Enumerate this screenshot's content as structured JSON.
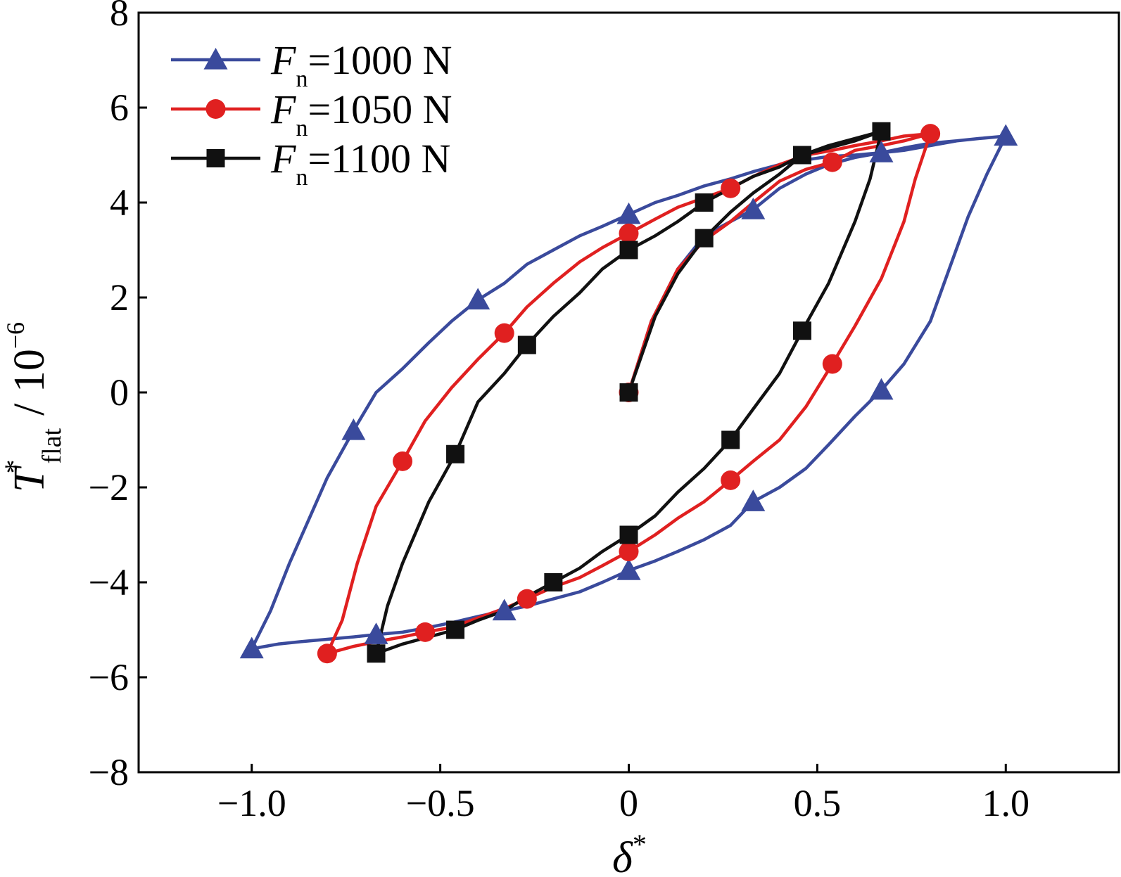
{
  "chart_data": {
    "type": "line",
    "title": "",
    "xlabel": {
      "symbol": "δ",
      "superscript": "*"
    },
    "ylabel": {
      "symbol": "T",
      "superscript": "*",
      "subscript": "flat",
      "unit": "/ 10",
      "unit_exponent": "−6"
    },
    "xlim": [
      -1.3,
      1.3
    ],
    "ylim": [
      -8,
      8
    ],
    "xticks": [
      -1.0,
      -0.5,
      0,
      0.5,
      1.0
    ],
    "xtick_labels": [
      "−1.0",
      "−0.5",
      "0",
      "0.5",
      "1.0"
    ],
    "yticks": [
      -8,
      -6,
      -4,
      -2,
      0,
      2,
      4,
      6,
      8
    ],
    "ytick_labels": [
      "−8",
      "−6",
      "−4",
      "−2",
      "0",
      "2",
      "4",
      "6",
      "8"
    ],
    "grid": false,
    "legend_position": "top-left",
    "series": [
      {
        "name": "F_n=1000 N",
        "legend": {
          "symbol": "F",
          "subscript": "n",
          "text": "=1000 N"
        },
        "color": "#3a4a9c",
        "marker": "triangle",
        "x": [
          0,
          0.06,
          0.13,
          0.2,
          0.27,
          0.33,
          0.4,
          0.47,
          0.53,
          0.6,
          0.67,
          0.73,
          0.8,
          0.87,
          0.93,
          1.0,
          0.95,
          0.9,
          0.85,
          0.8,
          0.73,
          0.67,
          0.6,
          0.53,
          0.47,
          0.4,
          0.33,
          0.27,
          0.2,
          0.13,
          0.07,
          0,
          -0.07,
          -0.13,
          -0.2,
          -0.27,
          -0.33,
          -0.4,
          -0.47,
          -0.53,
          -0.6,
          -0.67,
          -0.73,
          -0.8,
          -0.87,
          -0.93,
          -1.0,
          -0.95,
          -0.9,
          -0.85,
          -0.8,
          -0.73,
          -0.67,
          -0.6,
          -0.53,
          -0.47,
          -0.4,
          -0.33,
          -0.27,
          -0.2,
          -0.13,
          -0.07,
          0,
          0.07,
          0.13,
          0.2,
          0.27,
          0.33,
          0.4,
          0.47,
          0.53,
          0.6,
          0.67,
          0.73,
          0.8,
          0.87,
          0.93,
          1.0
        ],
        "y": [
          0,
          1.5,
          2.6,
          3.3,
          3.6,
          3.85,
          4.3,
          4.6,
          4.8,
          4.95,
          5.05,
          5.15,
          5.25,
          5.3,
          5.35,
          5.4,
          4.6,
          3.7,
          2.6,
          1.5,
          0.6,
          0.05,
          -0.5,
          -1.1,
          -1.6,
          -2.0,
          -2.3,
          -2.8,
          -3.1,
          -3.35,
          -3.55,
          -3.75,
          -4.0,
          -4.2,
          -4.35,
          -4.5,
          -4.6,
          -4.72,
          -4.85,
          -4.95,
          -5.05,
          -5.1,
          -5.15,
          -5.2,
          -5.25,
          -5.3,
          -5.4,
          -4.6,
          -3.6,
          -2.7,
          -1.8,
          -0.8,
          0.0,
          0.5,
          1.05,
          1.5,
          1.95,
          2.3,
          2.7,
          3.0,
          3.3,
          3.5,
          3.75,
          4.0,
          4.15,
          4.35,
          4.5,
          4.65,
          4.8,
          4.9,
          4.97,
          5.0,
          5.05,
          5.1,
          5.2,
          5.3,
          5.35,
          5.4
        ],
        "marker_x": [
          1.0,
          0.67,
          0.33,
          0,
          -0.4,
          -0.73,
          -1.0,
          -0.67,
          -0.33,
          0,
          0.33,
          0.67
        ],
        "marker_y": [
          5.4,
          0.05,
          -2.3,
          -3.75,
          1.95,
          -0.8,
          -5.4,
          -5.1,
          -4.6,
          3.75,
          3.85,
          5.05
        ]
      },
      {
        "name": "F_n=1050 N",
        "legend": {
          "symbol": "F",
          "subscript": "n",
          "text": "=1050 N"
        },
        "color": "#e02020",
        "marker": "circle",
        "x": [
          0,
          0.06,
          0.13,
          0.2,
          0.27,
          0.33,
          0.4,
          0.47,
          0.54,
          0.6,
          0.67,
          0.73,
          0.8,
          0.76,
          0.73,
          0.67,
          0.6,
          0.54,
          0.47,
          0.4,
          0.33,
          0.27,
          0.2,
          0.13,
          0.07,
          0,
          -0.07,
          -0.13,
          -0.2,
          -0.27,
          -0.33,
          -0.4,
          -0.47,
          -0.54,
          -0.6,
          -0.67,
          -0.73,
          -0.8,
          -0.76,
          -0.72,
          -0.67,
          -0.6,
          -0.54,
          -0.47,
          -0.4,
          -0.33,
          -0.27,
          -0.2,
          -0.13,
          -0.07,
          0,
          0.07,
          0.13,
          0.2,
          0.27,
          0.33,
          0.4,
          0.47,
          0.54,
          0.6,
          0.67,
          0.73,
          0.8
        ],
        "y": [
          0,
          1.5,
          2.6,
          3.2,
          3.6,
          4.0,
          4.45,
          4.7,
          4.85,
          5.1,
          5.2,
          5.3,
          5.45,
          4.5,
          3.6,
          2.4,
          1.4,
          0.6,
          -0.3,
          -1.0,
          -1.45,
          -1.85,
          -2.3,
          -2.65,
          -3.0,
          -3.35,
          -3.65,
          -3.9,
          -4.1,
          -4.35,
          -4.55,
          -4.75,
          -4.95,
          -5.05,
          -5.15,
          -5.25,
          -5.35,
          -5.5,
          -4.8,
          -3.6,
          -2.4,
          -1.45,
          -0.6,
          0.1,
          0.7,
          1.25,
          1.8,
          2.3,
          2.75,
          3.05,
          3.35,
          3.65,
          3.9,
          4.1,
          4.3,
          4.55,
          4.8,
          5.0,
          5.1,
          5.2,
          5.3,
          5.4,
          5.45
        ],
        "marker_x": [
          0.8,
          0.54,
          0.27,
          0,
          -0.33,
          -0.6,
          -0.8,
          -0.54,
          -0.27,
          0,
          0.27,
          0.54,
          0
        ],
        "marker_y": [
          5.45,
          0.6,
          -1.85,
          -3.35,
          1.25,
          -1.45,
          -5.5,
          -5.05,
          -4.35,
          3.35,
          4.3,
          4.85,
          0
        ]
      },
      {
        "name": "F_n=1100 N",
        "legend": {
          "symbol": "F",
          "subscript": "n",
          "text": "=1100 N"
        },
        "color": "#111111",
        "marker": "square",
        "x": [
          0,
          0.07,
          0.13,
          0.2,
          0.27,
          0.33,
          0.4,
          0.46,
          0.53,
          0.6,
          0.67,
          0.64,
          0.6,
          0.53,
          0.46,
          0.4,
          0.33,
          0.27,
          0.2,
          0.13,
          0.07,
          0,
          -0.07,
          -0.13,
          -0.2,
          -0.27,
          -0.33,
          -0.4,
          -0.46,
          -0.53,
          -0.6,
          -0.67,
          -0.64,
          -0.6,
          -0.53,
          -0.46,
          -0.4,
          -0.33,
          -0.27,
          -0.2,
          -0.13,
          -0.07,
          0,
          0.07,
          0.13,
          0.2,
          0.27,
          0.33,
          0.4,
          0.46,
          0.53,
          0.6,
          0.67
        ],
        "y": [
          0,
          1.6,
          2.5,
          3.25,
          3.8,
          4.2,
          4.6,
          5.0,
          5.15,
          5.3,
          5.5,
          4.5,
          3.6,
          2.3,
          1.3,
          0.4,
          -0.35,
          -1.0,
          -1.6,
          -2.1,
          -2.6,
          -3.0,
          -3.35,
          -3.7,
          -4.0,
          -4.3,
          -4.6,
          -4.8,
          -5.0,
          -5.15,
          -5.3,
          -5.5,
          -4.5,
          -3.6,
          -2.3,
          -1.3,
          -0.2,
          0.4,
          1.0,
          1.6,
          2.1,
          2.6,
          3.0,
          3.3,
          3.6,
          4.0,
          4.3,
          4.55,
          4.75,
          5.0,
          5.2,
          5.35,
          5.5
        ],
        "marker_x": [
          0.67,
          0.46,
          0.27,
          0,
          -0.27,
          -0.46,
          -0.67,
          -0.46,
          -0.2,
          0,
          0.2,
          0.46,
          0,
          0.2
        ],
        "marker_y": [
          5.5,
          1.3,
          -1.0,
          -3.0,
          1.0,
          -1.3,
          -5.5,
          -5.0,
          -4.0,
          3.0,
          4.0,
          5.0,
          0,
          3.25
        ]
      }
    ]
  }
}
